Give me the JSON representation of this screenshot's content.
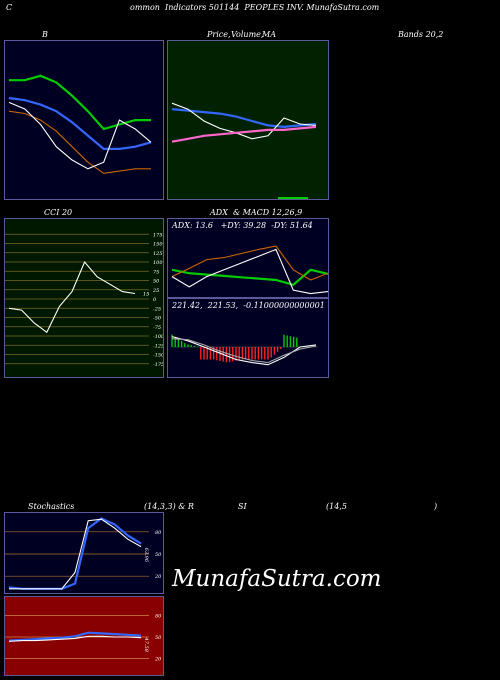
{
  "header": {
    "title_left": "C",
    "title_main": "ommon  Indicators 501144  PEOPLES INV. MunafaSutra.com"
  },
  "labels": {
    "b": "B",
    "price": "Price,",
    "volume": "Volume,",
    "ma": "MA",
    "bands": "Bands 20,2",
    "cci": "CCI 20",
    "adx_macd": "ADX  & MACD 12,26,9",
    "stoch_left": "Stochastics",
    "stoch_mid": "(14,3,3) & R",
    "stoch_si": "SI",
    "stoch_right": "(14,5",
    "stoch_paren": ")"
  },
  "brand": "MunafaSutra.com",
  "colors": {
    "panel_bg_dark": "#000022",
    "price_bg": "#002200",
    "cci_bg": "#001800",
    "rsi_bg": "#880000",
    "blue_line": "#3366ff",
    "green_line": "#00cc00",
    "orange_line": "#cc6600",
    "white_line": "#ffffff",
    "pink_line": "#ff66cc"
  },
  "chart_data": [
    {
      "type": "line",
      "name": "bollinger_bands",
      "x": [
        0,
        1,
        2,
        3,
        4,
        5,
        6,
        7,
        8,
        9
      ],
      "series": [
        {
          "values": [
            80,
            80,
            82,
            79,
            73,
            66,
            58,
            60,
            62,
            62
          ],
          "color": "green"
        },
        {
          "values": [
            72,
            71,
            69,
            66,
            61,
            55,
            49,
            49,
            50,
            52
          ],
          "color": "blue"
        },
        {
          "values": [
            66,
            65,
            62,
            57,
            50,
            43,
            38,
            39,
            40,
            40
          ],
          "color": "orange"
        },
        {
          "values": [
            70,
            67,
            60,
            50,
            44,
            40,
            43,
            62,
            58,
            52
          ],
          "color": "white"
        }
      ],
      "ylim": [
        30,
        95
      ]
    },
    {
      "type": "line",
      "name": "price_volume_ma",
      "x": [
        0,
        1,
        2,
        3,
        4,
        5,
        6,
        7,
        8,
        9
      ],
      "series": [
        {
          "values": [
            58,
            57,
            56,
            55,
            53,
            50,
            47,
            46,
            47,
            48
          ],
          "color": "blue"
        },
        {
          "values": [
            62,
            58,
            50,
            45,
            42,
            38,
            40,
            52,
            48,
            47
          ],
          "color": "white"
        },
        {
          "values": [
            36,
            38,
            40,
            41,
            42,
            43,
            44,
            44,
            45,
            46
          ],
          "color": "pink"
        }
      ],
      "ylim": [
        0,
        100
      ]
    },
    {
      "type": "line",
      "name": "cci",
      "value_label": "15",
      "ticks": [
        175,
        150,
        125,
        100,
        75,
        50,
        25,
        0,
        -25,
        -50,
        -75,
        -100,
        -125,
        -150,
        -175
      ],
      "x": [
        0,
        1,
        2,
        3,
        4,
        5,
        6,
        7,
        8,
        9,
        10
      ],
      "series": [
        {
          "values": [
            -25,
            -30,
            -65,
            -90,
            -20,
            20,
            100,
            60,
            40,
            20,
            15
          ],
          "color": "white"
        }
      ],
      "ylim": [
        -200,
        200
      ]
    },
    {
      "type": "line",
      "name": "adx",
      "readout": "ADX: 13.6   +DY: 39.28  -DY: 51.64",
      "x": [
        0,
        1,
        2,
        3,
        4,
        5,
        6,
        7,
        8,
        9
      ],
      "series": [
        {
          "values": [
            40,
            35,
            33,
            31,
            29,
            27,
            25,
            18,
            40,
            34
          ],
          "color": "green"
        },
        {
          "values": [
            30,
            42,
            55,
            58,
            64,
            70,
            75,
            40,
            25,
            35
          ],
          "color": "orange"
        },
        {
          "values": [
            30,
            15,
            30,
            40,
            50,
            60,
            70,
            10,
            5,
            8
          ],
          "color": "white"
        }
      ],
      "ylim": [
        0,
        100
      ]
    },
    {
      "type": "line",
      "name": "macd",
      "readout": "221.42,  221.53,  -0.11000000000001",
      "x": [
        0,
        1,
        2,
        3,
        4,
        5,
        6,
        7,
        8,
        9
      ],
      "series": [
        {
          "values": [
            10,
            6,
            0,
            -6,
            -12,
            -15,
            -17,
            -10,
            0,
            2
          ],
          "color": "white"
        },
        {
          "values": [
            8,
            7,
            2,
            -4,
            -9,
            -13,
            -15,
            -8,
            -2,
            1
          ],
          "color": "grey"
        }
      ],
      "ylim": [
        -25,
        25
      ]
    },
    {
      "type": "line",
      "name": "stochastics",
      "value_label": "63.96",
      "ticks": [
        80,
        50,
        20
      ],
      "x": [
        0,
        1,
        2,
        3,
        4,
        5,
        6,
        7,
        8,
        9,
        10
      ],
      "series": [
        {
          "values": [
            5,
            3,
            3,
            3,
            3,
            10,
            85,
            98,
            90,
            75,
            64
          ],
          "color": "blue"
        },
        {
          "values": [
            3,
            3,
            3,
            3,
            3,
            25,
            95,
            97,
            85,
            70,
            60
          ],
          "color": "white"
        }
      ],
      "ylim": [
        0,
        100
      ]
    },
    {
      "type": "line",
      "name": "rsi",
      "value_label": "47.58",
      "ticks": [
        80,
        50,
        20
      ],
      "x": [
        0,
        1,
        2,
        3,
        4,
        5,
        6,
        7,
        8,
        9,
        10
      ],
      "series": [
        {
          "values": [
            45,
            46,
            47,
            48,
            49,
            51,
            56,
            55,
            54,
            53,
            52
          ],
          "color": "blue"
        },
        {
          "values": [
            44,
            45,
            45,
            46,
            47,
            48,
            51,
            51,
            50,
            50,
            49
          ],
          "color": "white"
        }
      ],
      "ylim": [
        0,
        100
      ]
    }
  ]
}
